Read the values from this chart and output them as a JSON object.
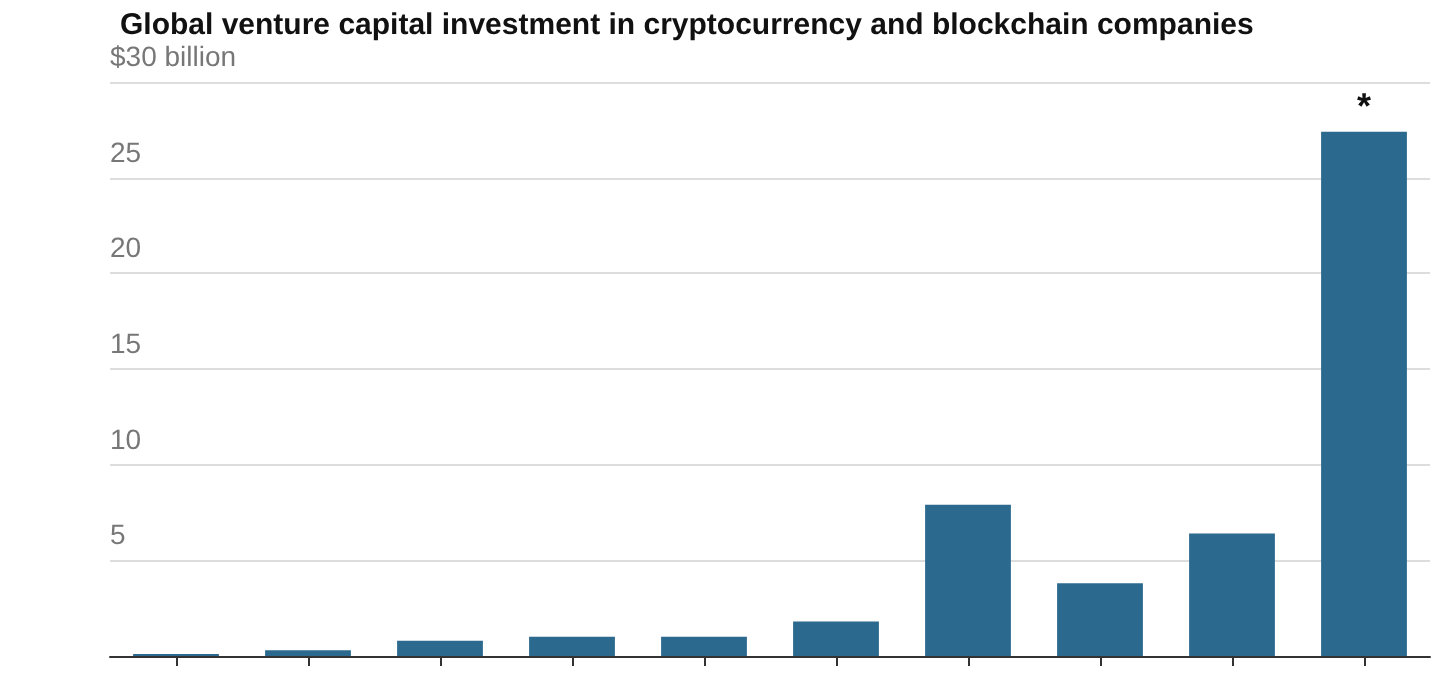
{
  "chart_data": {
    "type": "bar",
    "title": "Global venture capital investment in cryptocurrency and blockchain companies",
    "categories": [
      null,
      null,
      null,
      null,
      null,
      null,
      null,
      null,
      null,
      null
    ],
    "values": [
      0.1,
      0.3,
      0.8,
      1.0,
      1.0,
      1.8,
      7.9,
      3.8,
      6.4,
      27.4
    ],
    "color": "#2b6a8e",
    "ylim": [
      0,
      30
    ],
    "yticks": [
      {
        "value": 0,
        "label": null
      },
      5,
      10,
      15,
      20,
      25,
      {
        "value": 30,
        "label": "$30 billion"
      }
    ],
    "grid": "y",
    "annotations": [
      "*"
    ]
  }
}
